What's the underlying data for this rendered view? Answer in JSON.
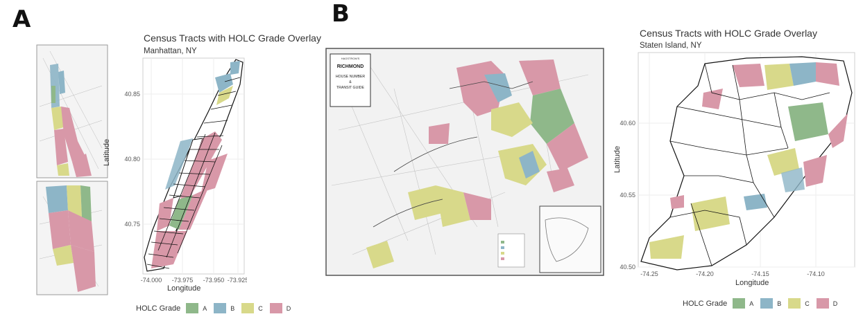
{
  "panel_a": {
    "letter": "A",
    "title": "Census Tracts with HOLC Grade Overlay",
    "subtitle": "Manhattan, NY",
    "xlabel": "Longitude",
    "ylabel": "Latitude",
    "x_ticks": [
      "-74.000",
      "-73.975",
      "-73.950",
      "-73.925"
    ],
    "y_ticks": [
      "40.75",
      "40.80",
      "40.85"
    ],
    "legend_title": "HOLC Grade",
    "legend_items": [
      "A",
      "B",
      "C",
      "D"
    ]
  },
  "panel_b": {
    "letter": "B",
    "map_title_lines": [
      "HAGSTROM'S",
      "RICHMOND",
      "HOUSE NUMBER",
      "&",
      "TRANSIT GUIDE"
    ],
    "title": "Census Tracts with HOLC Grade Overlay",
    "subtitle": "Staten Island, NY",
    "xlabel": "Longitude",
    "ylabel": "Latitude",
    "x_ticks": [
      "-74.25",
      "-74.20",
      "-74.15",
      "-74.10"
    ],
    "y_ticks": [
      "40.50",
      "40.55",
      "40.60"
    ],
    "legend_title": "HOLC Grade",
    "legend_items": [
      "A",
      "B",
      "C",
      "D"
    ]
  },
  "colors": {
    "A": "#8fb88a",
    "B": "#8db5c7",
    "C": "#d8d98a",
    "D": "#d898a8"
  }
}
